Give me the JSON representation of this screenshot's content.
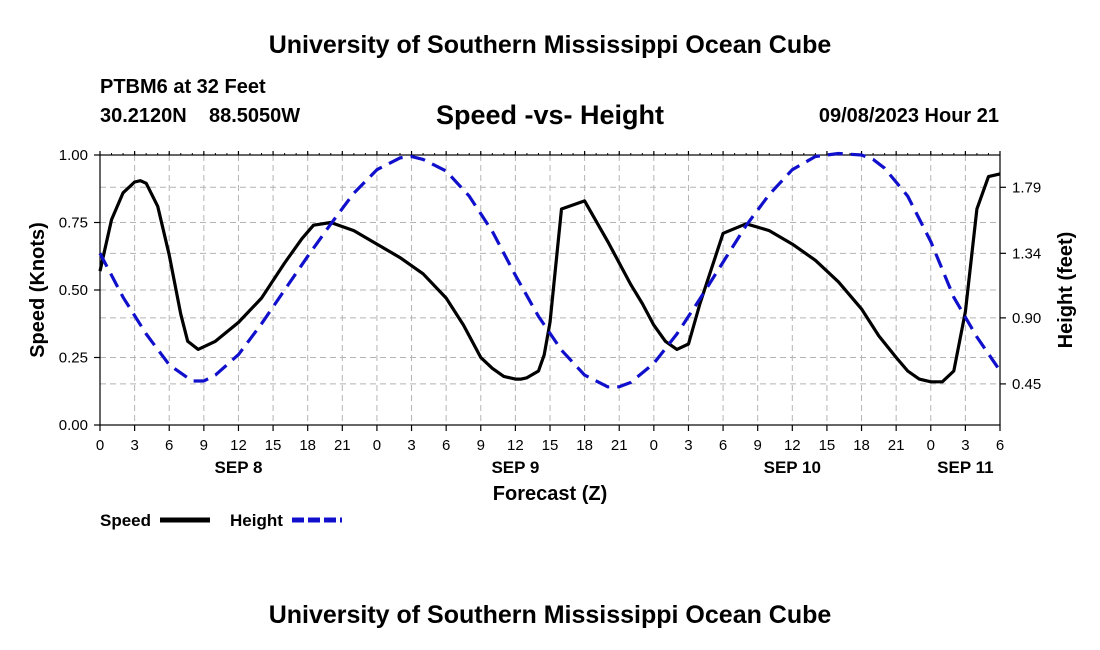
{
  "page": {
    "top_title": "University of Southern Mississippi Ocean Cube",
    "bottom_title": "University of Southern Mississippi Ocean Cube",
    "station": "PTBM6 at 32 Feet",
    "latitude": "30.2120N",
    "longitude": "88.5050W",
    "subtitle": "Speed -vs- Height",
    "timestamp": "09/08/2023 Hour 21"
  },
  "chart_data": {
    "type": "line",
    "title": "Speed -vs- Height",
    "xlabel": "Forecast (Z)",
    "ylabel": "Speed (Knots)",
    "y2label": "Height (feet)",
    "x_range": [
      0,
      78
    ],
    "ylim": [
      0,
      1.0
    ],
    "y2lim": [
      0.17,
      2.01
    ],
    "grid": true,
    "x_tick_hours": [
      0,
      3,
      6,
      9,
      12,
      15,
      18,
      21,
      24,
      27,
      30,
      33,
      36,
      39,
      42,
      45,
      48,
      51,
      54,
      57,
      60,
      63,
      66,
      69,
      72,
      75,
      78
    ],
    "x_tick_labels": [
      "0",
      "3",
      "6",
      "9",
      "12",
      "15",
      "18",
      "21",
      "0",
      "3",
      "6",
      "9",
      "12",
      "15",
      "18",
      "21",
      "0",
      "3",
      "6",
      "9",
      "12",
      "15",
      "18",
      "21",
      "0",
      "3",
      "6"
    ],
    "date_labels": [
      {
        "label": "SEP 8",
        "hour": 12
      },
      {
        "label": "SEP 9",
        "hour": 36
      },
      {
        "label": "SEP 10",
        "hour": 60
      },
      {
        "label": "SEP 11",
        "hour": 75
      }
    ],
    "y_ticks": [
      0,
      0.25,
      0.5,
      0.75,
      1.0
    ],
    "y_tick_labels": [
      "0.00",
      "0.25",
      "0.50",
      "0.75",
      "1.00"
    ],
    "y2_ticks": [
      0.45,
      0.9,
      1.34,
      1.79
    ],
    "y2_tick_labels": [
      "0.45",
      "0.90",
      "1.34",
      "1.79"
    ],
    "legend_position": "bottom-left",
    "series": [
      {
        "name": "Speed",
        "axis": "left",
        "color": "#000000",
        "style": "solid",
        "x": [
          0,
          1,
          2,
          3,
          3.5,
          4,
          5,
          6,
          7,
          7.6,
          8.5,
          10,
          12,
          14,
          16,
          17.5,
          18.5,
          20,
          22,
          24,
          26,
          28,
          30,
          31.5,
          33,
          34,
          35,
          36,
          36.5,
          37,
          38,
          38.5,
          39,
          40,
          42,
          44,
          46,
          47,
          48,
          49,
          50,
          51,
          52,
          54,
          56,
          58,
          60,
          62,
          64,
          66,
          67.5,
          69,
          70,
          71,
          72,
          73,
          74,
          75,
          76,
          77,
          78
        ],
        "values": [
          0.57,
          0.76,
          0.86,
          0.9,
          0.905,
          0.895,
          0.81,
          0.63,
          0.41,
          0.31,
          0.28,
          0.31,
          0.38,
          0.47,
          0.6,
          0.69,
          0.74,
          0.75,
          0.72,
          0.67,
          0.62,
          0.56,
          0.47,
          0.37,
          0.25,
          0.21,
          0.18,
          0.17,
          0.17,
          0.175,
          0.2,
          0.26,
          0.38,
          0.8,
          0.83,
          0.68,
          0.52,
          0.45,
          0.37,
          0.31,
          0.28,
          0.3,
          0.45,
          0.71,
          0.745,
          0.72,
          0.67,
          0.61,
          0.53,
          0.43,
          0.33,
          0.25,
          0.2,
          0.17,
          0.16,
          0.16,
          0.2,
          0.42,
          0.8,
          0.92,
          0.93
        ]
      },
      {
        "name": "Height",
        "axis": "right",
        "color": "#1010cc",
        "style": "dashed",
        "x": [
          0,
          2,
          4,
          6,
          8,
          9,
          10,
          12,
          14,
          16,
          18,
          20,
          22,
          24,
          26,
          27,
          28,
          30,
          32,
          34,
          36,
          38,
          40,
          42,
          44,
          45,
          46,
          48,
          50,
          52,
          54,
          56,
          58,
          60,
          62,
          64,
          66,
          67,
          68,
          70,
          72,
          74,
          76,
          78
        ],
        "values": [
          1.34,
          1.04,
          0.79,
          0.58,
          0.47,
          0.47,
          0.51,
          0.65,
          0.86,
          1.09,
          1.32,
          1.54,
          1.75,
          1.91,
          1.99,
          2.0,
          1.98,
          1.9,
          1.73,
          1.49,
          1.19,
          0.91,
          0.68,
          0.51,
          0.43,
          0.43,
          0.46,
          0.59,
          0.79,
          1.03,
          1.28,
          1.53,
          1.74,
          1.91,
          2.0,
          2.02,
          2.01,
          1.98,
          1.92,
          1.73,
          1.42,
          1.04,
          0.77,
          0.54
        ]
      }
    ]
  }
}
